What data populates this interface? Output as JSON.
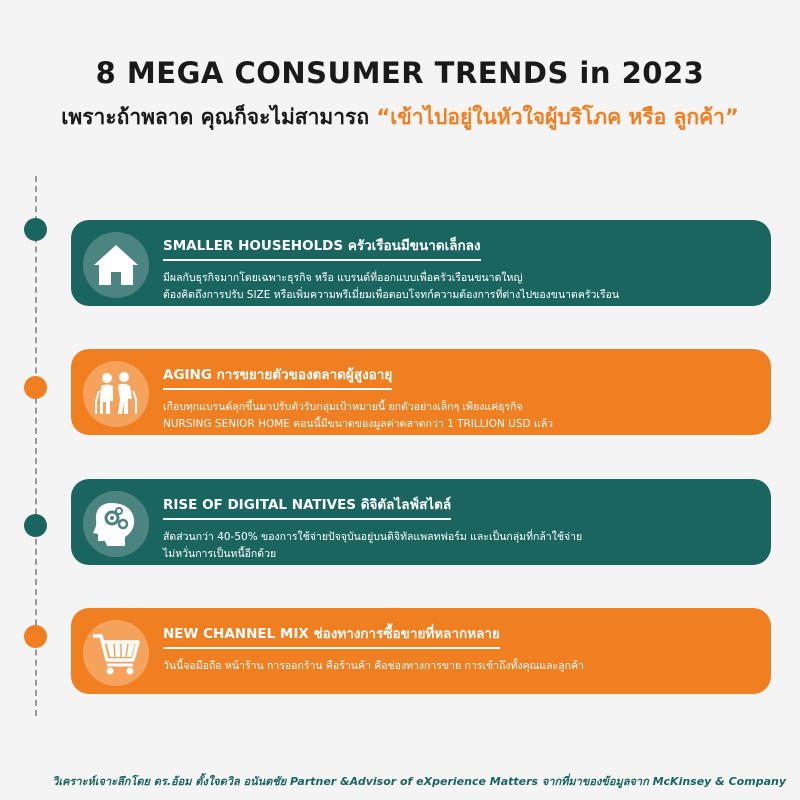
{
  "header": {
    "title": "8 MEGA CONSUMER TRENDS in 2023",
    "subtitle_main": "เพราะถ้าพลาด คุณก็จะไม่สามารถ ",
    "subtitle_accent": "“เข้าไปอยู่ในหัวใจผู้บริโภค หรือ ลูกค้า”"
  },
  "colors": {
    "teal": "#1a6560",
    "orange": "#f07f22"
  },
  "trends": [
    {
      "title": "SMALLER HOUSEHOLDS ครัวเรือนมีขนาดเล็กลง",
      "line1": "มีผลกับธุรกิจมากโดยเฉพาะธุรกิจ หรือ แบรนด์ที่ออกแบบเพื่อครัวเรือนขนาดใหญ่",
      "line2": "ต้องคิดถึงการปรับ SIZE หรือเพิ่มความพรีเมี่ยมเพื่อตอบโจทก์ความต้องการที่ต่างไปของขนาดครัวเรือน",
      "icon": "house-icon",
      "color": "teal"
    },
    {
      "title": "AGING การขยายตัวของตลาดผู้สูงอายุ",
      "line1": "เกือบทุกแบรนด์ลุกขึ้นมาปรับตัวรับกลุ่มเป้าหมายนี้ ยกตัวอย่างเล็กๆ เพียงแค่ธุรกิจ",
      "line2": "NURSING SENIOR HOME ตอนนี้มีขนาดของมูลค่าตลาดกว่า 1 TRILLION USD แล้ว",
      "icon": "elderly-couple-icon",
      "color": "orange"
    },
    {
      "title": "RISE OF DIGITAL NATIVES ดิจิตัลไลฟ์สไตล์",
      "line1": "สัดส่วนกว่า 40-50% ของการใช้จ่ายปัจจุบันอยู่บนดิจิทัลแพลทฟอร์ม และเป็นกลุ่มที่กล้าใช้จ่าย",
      "line2": "ไม่หวั่นการเป็นหนี้อีกด้วย",
      "icon": "head-gears-icon",
      "color": "teal"
    },
    {
      "title": "NEW CHANNEL MIX ช่องทางการซื้อขายที่หลากหลาย",
      "line1": "วันนี้จอมือถือ หน้าร้าน การออกร้าน คือร้านค้า คือช่องทางการขาย การเข้าถึงทั้งคุณและลูกค้า",
      "line2": "",
      "icon": "shopping-cart-icon",
      "color": "orange"
    }
  ],
  "footer": {
    "credit": "วิเคราะห์เจาะลึกโดย ดร.อ้อม ตั้งใจดวิล อนันตชัย Partner &Advisor of eXperience Matters จากที่มาของข้อมูลจาก McKinsey & Company"
  }
}
